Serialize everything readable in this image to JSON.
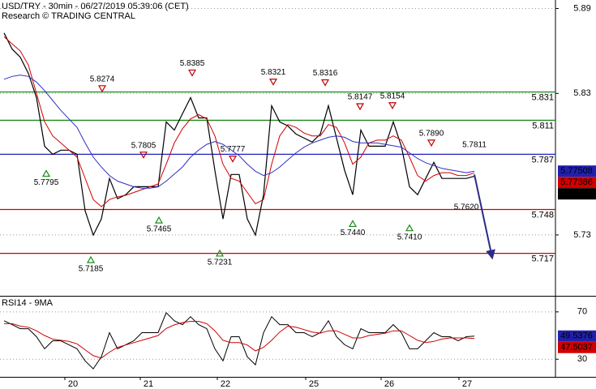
{
  "chart_data": [
    {
      "type": "line",
      "title": "USD/TRY - 30min - 06/27/2019 05:39:06 (CET)",
      "subtitle": "Research © TRADING CENTRAL",
      "xlim": [
        -0.5,
        68
      ],
      "ylim": [
        5.687,
        5.896
      ],
      "yticks": [
        5.73,
        5.83,
        5.89
      ],
      "grid": true,
      "x": [
        0,
        1,
        2,
        3,
        4,
        5,
        6,
        7,
        8,
        9,
        10,
        11,
        12,
        13,
        14,
        15,
        16,
        17,
        18,
        19,
        20,
        21,
        22,
        23,
        24,
        25,
        26,
        27,
        28,
        29,
        30,
        31,
        32,
        33,
        34,
        35,
        36,
        37,
        38,
        39,
        40,
        41,
        42,
        43,
        44,
        45,
        46,
        47,
        48,
        49,
        50,
        51,
        52,
        53,
        54,
        55,
        56,
        57,
        58
      ],
      "series": [
        {
          "color": "#000000",
          "box_color": "#000000",
          "width": 1.2,
          "values": [
            5.8727,
            5.8613,
            5.8556,
            5.8441,
            5.827,
            5.7927,
            5.787,
            5.7899,
            5.7899,
            5.787,
            5.747,
            5.7299,
            5.7413,
            5.7699,
            5.7556,
            5.7584,
            5.7641,
            5.7641,
            5.7641,
            5.7641,
            5.8099,
            5.8041,
            5.8156,
            5.827,
            5.8127,
            5.8127,
            5.7756,
            5.7413,
            5.7727,
            5.7727,
            5.7413,
            5.7299,
            5.7584,
            5.8213,
            5.8099,
            5.807,
            5.8013,
            5.7984,
            5.7956,
            5.8013,
            5.8213,
            5.7984,
            5.7756,
            5.7584,
            5.8041,
            5.7927,
            5.7927,
            5.7927,
            5.8099,
            5.7927,
            5.7641,
            5.7584,
            5.7699,
            5.7813,
            5.7699,
            5.7699,
            5.7699,
            5.7699,
            5.7715
          ]
        },
        {
          "color": "#d00000",
          "box_color": "#d00000",
          "width": 1,
          "values": [
            5.87,
            5.865,
            5.86,
            5.85,
            5.83,
            5.81,
            5.8,
            5.795,
            5.79,
            5.785,
            5.77,
            5.755,
            5.75,
            5.755,
            5.757,
            5.758,
            5.76,
            5.762,
            5.764,
            5.766,
            5.78,
            5.795,
            5.805,
            5.812,
            5.815,
            5.812,
            5.8,
            5.78,
            5.77,
            5.768,
            5.76,
            5.752,
            5.755,
            5.78,
            5.8,
            5.808,
            5.806,
            5.802,
            5.8,
            5.8,
            5.808,
            5.806,
            5.795,
            5.78,
            5.785,
            5.795,
            5.797,
            5.797,
            5.8,
            5.797,
            5.785,
            5.772,
            5.768,
            5.772,
            5.774,
            5.774,
            5.772,
            5.772,
            5.77386
          ]
        },
        {
          "color": "#3030c0",
          "box_color": "#2020b0",
          "width": 1,
          "values": [
            5.84,
            5.842,
            5.843,
            5.842,
            5.838,
            5.832,
            5.825,
            5.818,
            5.812,
            5.806,
            5.795,
            5.785,
            5.778,
            5.772,
            5.768,
            5.766,
            5.764,
            5.763,
            5.763,
            5.764,
            5.768,
            5.773,
            5.778,
            5.785,
            5.79,
            5.794,
            5.796,
            5.794,
            5.79,
            5.786,
            5.78,
            5.775,
            5.772,
            5.774,
            5.778,
            5.783,
            5.788,
            5.792,
            5.795,
            5.797,
            5.799,
            5.8,
            5.799,
            5.796,
            5.795,
            5.795,
            5.795,
            5.794,
            5.793,
            5.792,
            5.788,
            5.784,
            5.781,
            5.779,
            5.777,
            5.776,
            5.775,
            5.774,
            5.77508
          ]
        }
      ],
      "levels": [
        {
          "value": 5.831,
          "color": "#1a8a1a"
        },
        {
          "value": 5.811,
          "color": "#1a8a1a"
        },
        {
          "value": 5.787,
          "color": "#2020c0"
        },
        {
          "value": 5.748,
          "color": "#d00000"
        },
        {
          "value": 5.717,
          "color": "#d00000"
        }
      ],
      "annotations": [
        {
          "x": 12.1,
          "value": 5.8274,
          "label": "5.8274",
          "side": "above",
          "marker": true
        },
        {
          "x": 23.2,
          "value": 5.8385,
          "label": "5.8385",
          "side": "above",
          "marker": true
        },
        {
          "x": 33.2,
          "value": 5.8321,
          "label": "5.8321",
          "side": "above",
          "marker": true
        },
        {
          "x": 39.6,
          "value": 5.8316,
          "label": "5.8316",
          "side": "above",
          "marker": true
        },
        {
          "x": 43.9,
          "value": 5.8147,
          "label": "5.8147",
          "side": "above",
          "marker": true
        },
        {
          "x": 47.9,
          "value": 5.8154,
          "label": "5.8154",
          "side": "above",
          "marker": true
        },
        {
          "x": 52.7,
          "value": 5.789,
          "label": "5.7890",
          "side": "above",
          "marker": true
        },
        {
          "x": 17.2,
          "value": 5.7805,
          "label": "5.7805",
          "side": "above",
          "marker": true
        },
        {
          "x": 28.2,
          "value": 5.7777,
          "label": "5.7777",
          "side": "above",
          "marker": true
        },
        {
          "x": 58.0,
          "value": 5.7811,
          "label": "5.7811",
          "side": "above",
          "marker": false
        },
        {
          "x": 5.2,
          "value": 5.7795,
          "label": "5.7795",
          "side": "below",
          "marker": true
        },
        {
          "x": 10.7,
          "value": 5.7185,
          "label": "5.7185",
          "side": "below",
          "marker": true
        },
        {
          "x": 19.1,
          "value": 5.7465,
          "label": "5.7465",
          "side": "below",
          "marker": true
        },
        {
          "x": 26.6,
          "value": 5.7231,
          "label": "5.7231",
          "side": "below",
          "marker": true
        },
        {
          "x": 43.0,
          "value": 5.744,
          "label": "5.7440",
          "side": "below",
          "marker": true
        },
        {
          "x": 50.0,
          "value": 5.741,
          "label": "5.7410",
          "side": "below",
          "marker": true
        },
        {
          "x": 57.0,
          "value": 5.762,
          "label": "5.7620",
          "side": "below",
          "marker": false
        }
      ],
      "forecast": {
        "x": [
          58.0,
          60.2
        ],
        "values": [
          5.7727,
          5.7139
        ],
        "color": "#2a2a8a"
      }
    },
    {
      "type": "line",
      "title": "RSI14 - 9MA",
      "xlim": [
        -0.5,
        68
      ],
      "ylim": [
        15.1,
        82.9
      ],
      "yticks": [
        30,
        70
      ],
      "grid": true,
      "xticks": [
        {
          "value": 7.5,
          "label": "20"
        },
        {
          "value": 16.8,
          "label": "21"
        },
        {
          "value": 26.3,
          "label": "22"
        },
        {
          "value": 37.2,
          "label": "25"
        },
        {
          "value": 46.5,
          "label": "26"
        },
        {
          "value": 56.1,
          "label": "27"
        }
      ],
      "x": [
        0,
        1,
        2,
        3,
        4,
        5,
        6,
        7,
        8,
        9,
        10,
        11,
        12,
        13,
        14,
        15,
        16,
        17,
        18,
        19,
        20,
        21,
        22,
        23,
        24,
        25,
        26,
        27,
        28,
        29,
        30,
        31,
        32,
        33,
        34,
        35,
        36,
        37,
        38,
        39,
        40,
        41,
        42,
        43,
        44,
        45,
        46,
        47,
        48,
        49,
        50,
        51,
        52,
        53,
        54,
        55,
        56,
        57,
        58
      ],
      "series": [
        {
          "color": "#000000",
          "box_color": "#2020b0",
          "width": 1,
          "values": [
            62.5,
            59.2,
            55.8,
            55.8,
            49.0,
            38.8,
            45.6,
            45.6,
            42.2,
            38.8,
            28.6,
            21.9,
            32.0,
            52.4,
            38.8,
            42.2,
            45.6,
            52.4,
            52.4,
            52.4,
            69.3,
            62.5,
            59.2,
            65.9,
            59.2,
            55.8,
            38.8,
            28.6,
            49.0,
            49.0,
            32.0,
            25.3,
            52.4,
            65.9,
            59.2,
            59.2,
            52.4,
            52.4,
            49.0,
            52.4,
            62.5,
            49.0,
            42.2,
            38.8,
            55.8,
            52.4,
            52.4,
            52.4,
            59.2,
            52.4,
            38.8,
            38.8,
            45.6,
            52.4,
            49.0,
            49.0,
            45.6,
            49.0,
            49.5376
          ]
        },
        {
          "color": "#d00000",
          "box_color": "#d00000",
          "width": 1,
          "values": [
            60,
            60,
            58,
            57,
            54,
            50,
            47,
            46,
            45,
            43,
            38,
            33,
            31,
            36,
            40,
            42,
            44,
            46,
            48,
            50,
            56,
            59,
            61,
            62,
            62,
            60,
            54,
            46,
            44,
            44,
            42,
            37,
            40,
            46,
            53,
            58,
            57,
            55,
            53,
            52,
            54,
            54,
            51,
            48,
            48,
            50,
            51,
            52,
            54,
            54,
            50,
            46,
            44,
            45,
            47,
            48,
            48,
            48,
            47.5037
          ]
        }
      ]
    }
  ]
}
